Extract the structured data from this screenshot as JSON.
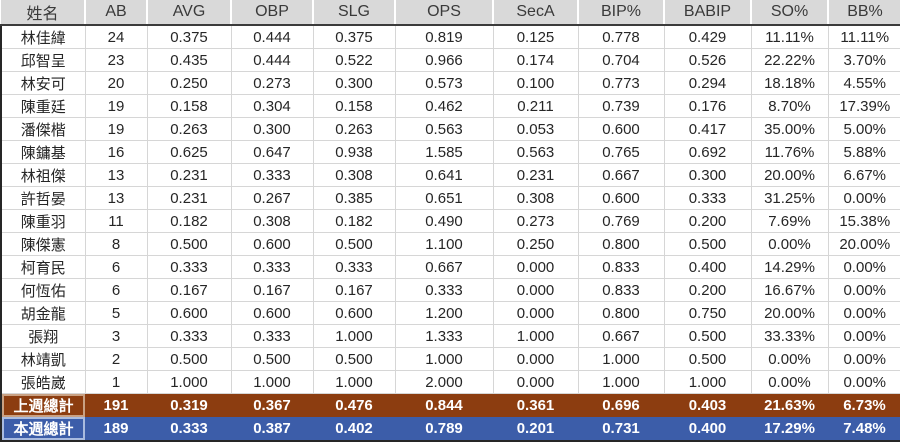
{
  "colors": {
    "header_bg": "#D9D9D9",
    "header_text": "#3A3A3A",
    "cell_text": "#262626",
    "grid_line": "#D6D6D6",
    "dark_border": "#262626",
    "prev_week_bg": "#8C3D10",
    "this_week_bg": "#3C5DA9",
    "summary_text": "#FFFFFF"
  },
  "table": {
    "columns": [
      "姓名",
      "AB",
      "AVG",
      "OBP",
      "SLG",
      "OPS",
      "SecA",
      "BIP%",
      "BABIP",
      "SO%",
      "BB%"
    ],
    "rows": [
      [
        "林佳緯",
        "24",
        "0.375",
        "0.444",
        "0.375",
        "0.819",
        "0.125",
        "0.778",
        "0.429",
        "11.11%",
        "11.11%"
      ],
      [
        "邱智呈",
        "23",
        "0.435",
        "0.444",
        "0.522",
        "0.966",
        "0.174",
        "0.704",
        "0.526",
        "22.22%",
        "3.70%"
      ],
      [
        "林安可",
        "20",
        "0.250",
        "0.273",
        "0.300",
        "0.573",
        "0.100",
        "0.773",
        "0.294",
        "18.18%",
        "4.55%"
      ],
      [
        "陳重廷",
        "19",
        "0.158",
        "0.304",
        "0.158",
        "0.462",
        "0.211",
        "0.739",
        "0.176",
        "8.70%",
        "17.39%"
      ],
      [
        "潘傑楷",
        "19",
        "0.263",
        "0.300",
        "0.263",
        "0.563",
        "0.053",
        "0.600",
        "0.417",
        "35.00%",
        "5.00%"
      ],
      [
        "陳鏞基",
        "16",
        "0.625",
        "0.647",
        "0.938",
        "1.585",
        "0.563",
        "0.765",
        "0.692",
        "11.76%",
        "5.88%"
      ],
      [
        "林祖傑",
        "13",
        "0.231",
        "0.333",
        "0.308",
        "0.641",
        "0.231",
        "0.667",
        "0.300",
        "20.00%",
        "6.67%"
      ],
      [
        "許哲晏",
        "13",
        "0.231",
        "0.267",
        "0.385",
        "0.651",
        "0.308",
        "0.600",
        "0.333",
        "31.25%",
        "0.00%"
      ],
      [
        "陳重羽",
        "11",
        "0.182",
        "0.308",
        "0.182",
        "0.490",
        "0.273",
        "0.769",
        "0.200",
        "7.69%",
        "15.38%"
      ],
      [
        "陳傑憲",
        "8",
        "0.500",
        "0.600",
        "0.500",
        "1.100",
        "0.250",
        "0.800",
        "0.500",
        "0.00%",
        "20.00%"
      ],
      [
        "柯育民",
        "6",
        "0.333",
        "0.333",
        "0.333",
        "0.667",
        "0.000",
        "0.833",
        "0.400",
        "14.29%",
        "0.00%"
      ],
      [
        "何恆佑",
        "6",
        "0.167",
        "0.167",
        "0.167",
        "0.333",
        "0.000",
        "0.833",
        "0.200",
        "16.67%",
        "0.00%"
      ],
      [
        "胡金龍",
        "5",
        "0.600",
        "0.600",
        "0.600",
        "1.200",
        "0.000",
        "0.800",
        "0.750",
        "20.00%",
        "0.00%"
      ],
      [
        "張翔",
        "3",
        "0.333",
        "0.333",
        "1.000",
        "1.333",
        "1.000",
        "0.667",
        "0.500",
        "33.33%",
        "0.00%"
      ],
      [
        "林靖凱",
        "2",
        "0.500",
        "0.500",
        "0.500",
        "1.000",
        "0.000",
        "1.000",
        "0.500",
        "0.00%",
        "0.00%"
      ],
      [
        "張皓崴",
        "1",
        "1.000",
        "1.000",
        "1.000",
        "2.000",
        "0.000",
        "1.000",
        "1.000",
        "0.00%",
        "0.00%"
      ]
    ],
    "summary_rows": [
      {
        "cells": [
          "上週總計",
          "191",
          "0.319",
          "0.367",
          "0.476",
          "0.844",
          "0.361",
          "0.696",
          "0.403",
          "21.63%",
          "6.73%"
        ],
        "bg": "#8C3D10",
        "name_border": "#C9A183"
      },
      {
        "cells": [
          "本週總計",
          "189",
          "0.333",
          "0.387",
          "0.402",
          "0.789",
          "0.201",
          "0.731",
          "0.400",
          "17.29%",
          "7.48%"
        ],
        "bg": "#3C5DA9",
        "name_border": "#A9BBDF"
      }
    ]
  }
}
